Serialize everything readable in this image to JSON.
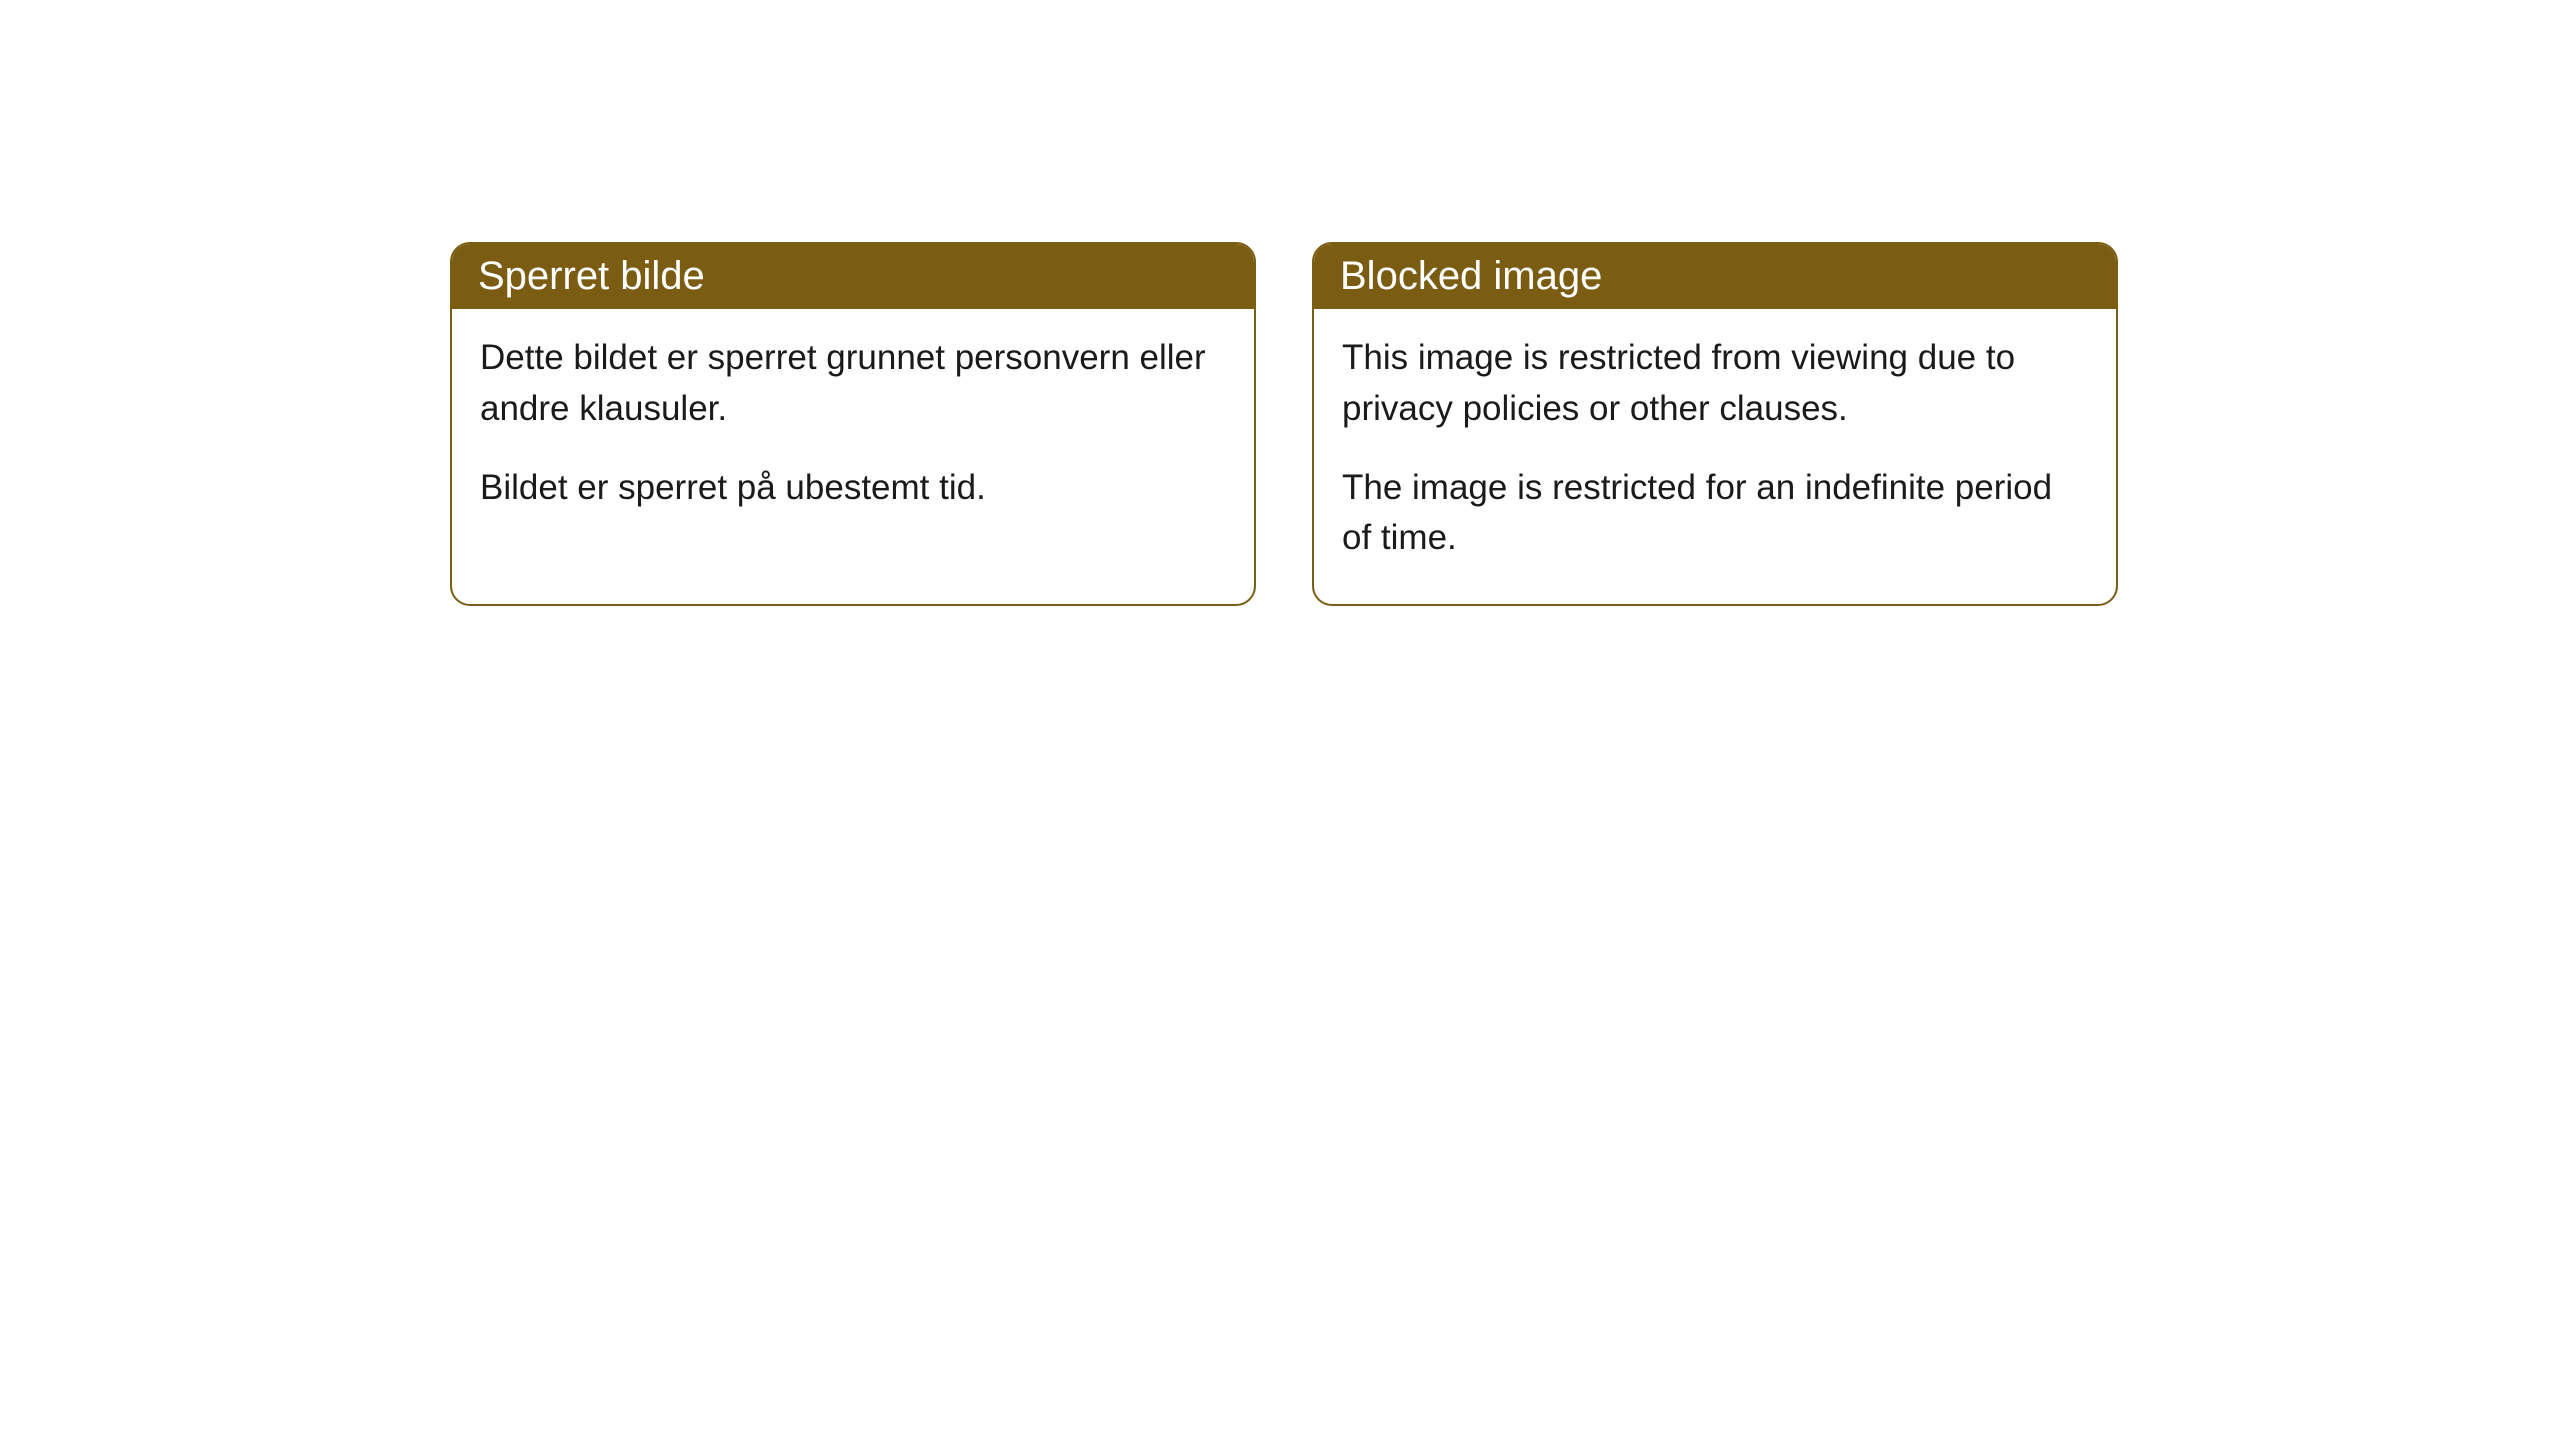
{
  "cards": [
    {
      "title": "Sperret bilde",
      "para1": "Dette bildet er sperret grunnet personvern eller andre klausuler.",
      "para2": "Bildet er sperret på ubestemt tid."
    },
    {
      "title": "Blocked image",
      "para1": "This image is restricted from viewing due to privacy policies or other clauses.",
      "para2": "The image is restricted for an indefinite period of time."
    }
  ],
  "style": {
    "header_bg": "#7a5c13",
    "header_text_color": "#ffffff",
    "body_bg": "#ffffff",
    "body_text_color": "#1a1a1a",
    "border_color": "#7a5c13",
    "border_radius": 20,
    "title_fontsize": 40,
    "body_fontsize": 35
  }
}
